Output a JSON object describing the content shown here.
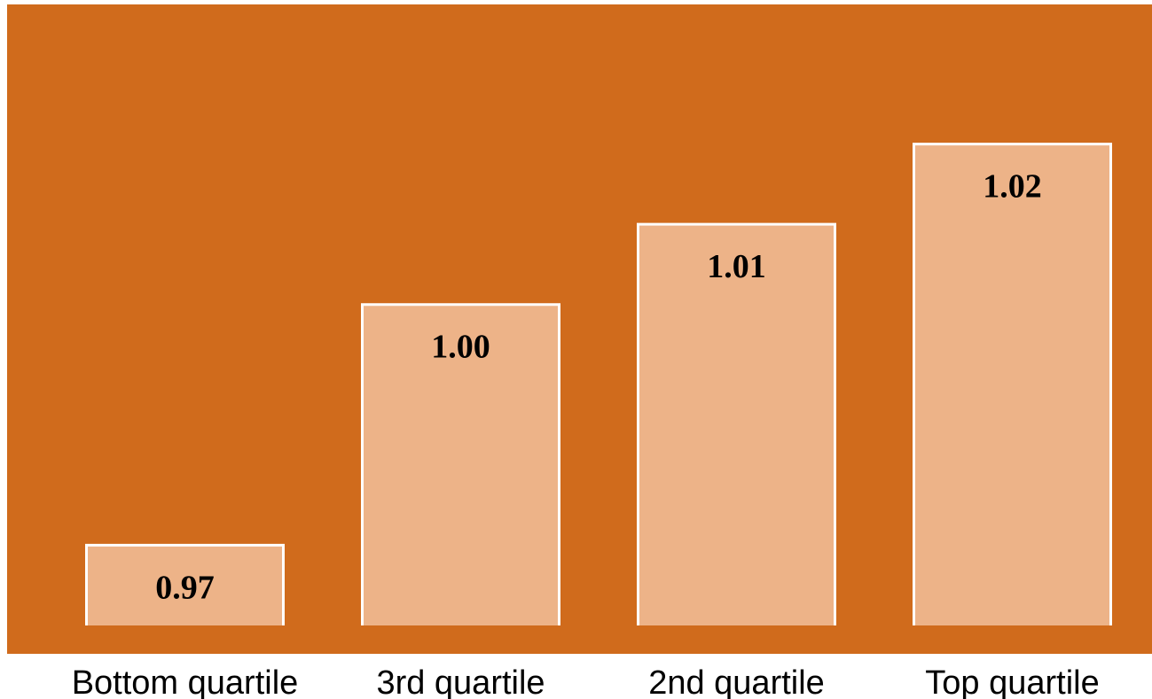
{
  "chart_data": {
    "type": "bar",
    "categories": [
      "Bottom quartile",
      "3rd quartile",
      "2nd quartile",
      "Top quartile"
    ],
    "values": [
      0.97,
      1.0,
      1.01,
      1.02
    ],
    "data_labels": [
      "0.97",
      "1.00",
      "1.01",
      "1.02"
    ],
    "title": "",
    "xlabel": "",
    "ylabel": "",
    "ylim": [
      0.96,
      1.03
    ],
    "grid": false,
    "legend": "none",
    "colors": {
      "plot_background": "#D06B1C",
      "bar_fill": "#EDB388",
      "bar_stroke": "#FFFFFF",
      "text": "#000000"
    }
  }
}
